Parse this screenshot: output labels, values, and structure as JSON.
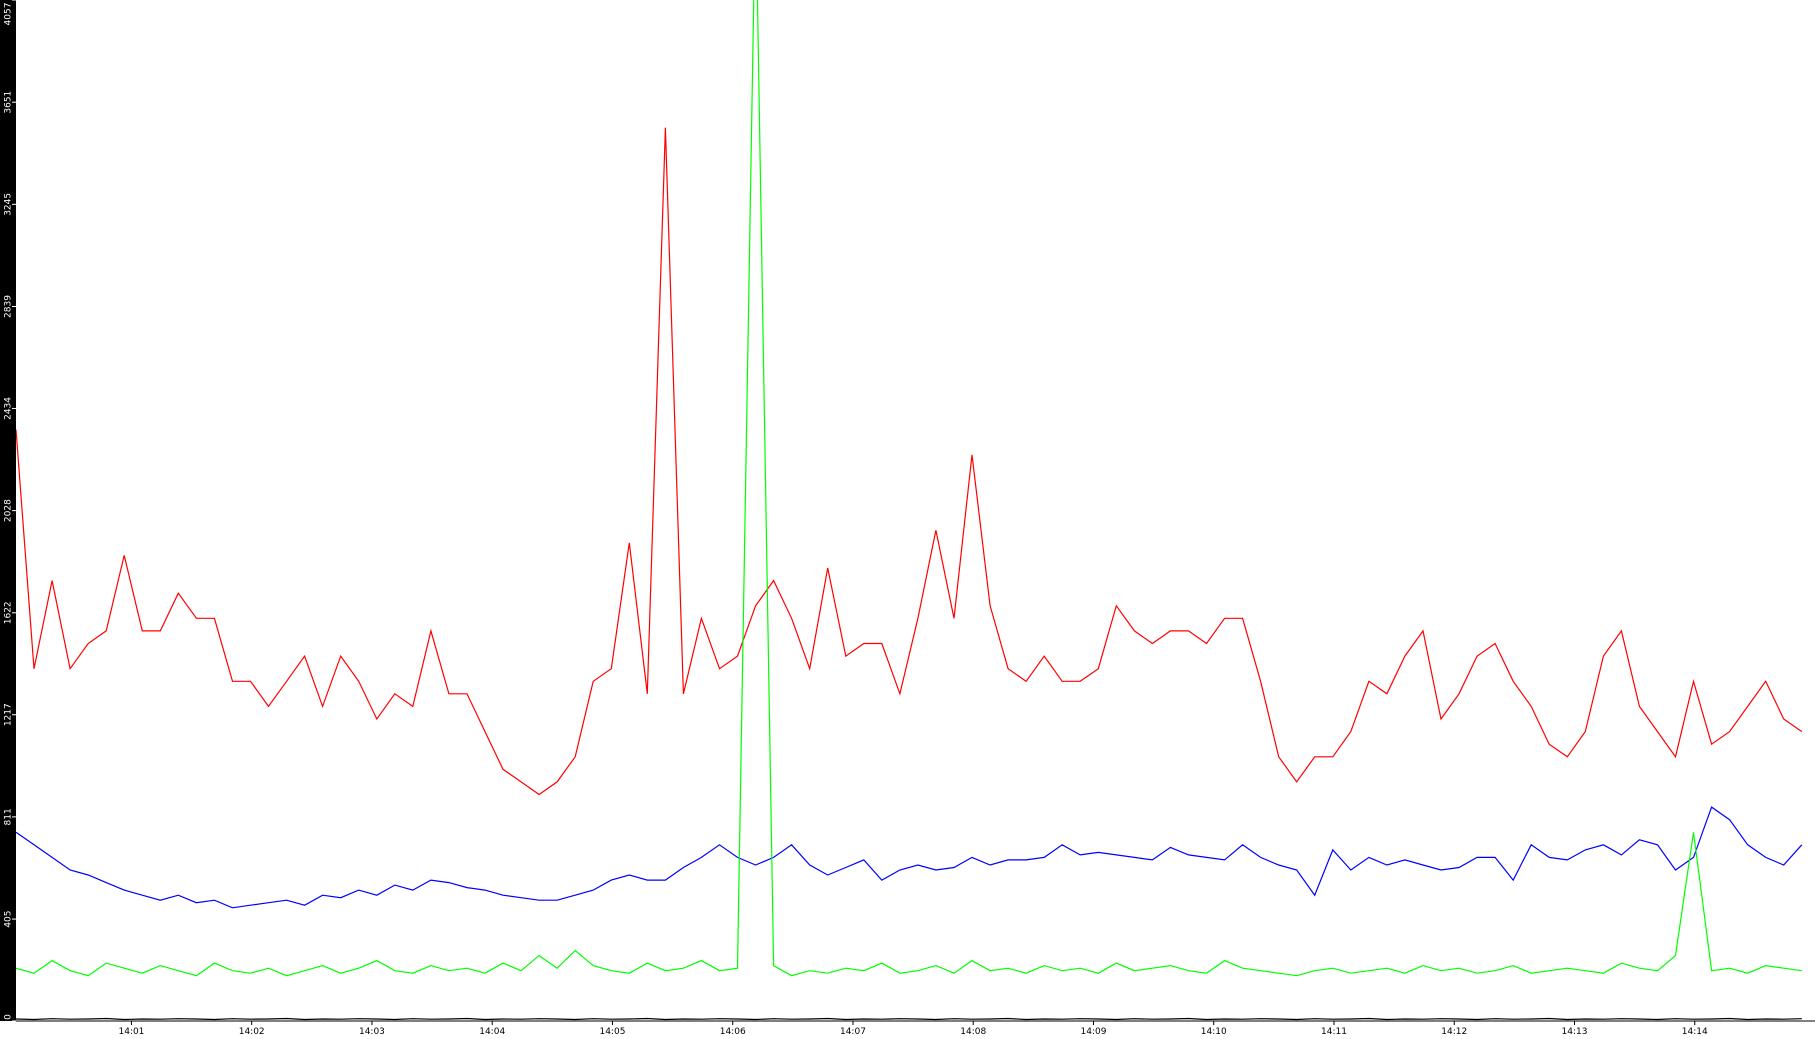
{
  "chart_data": {
    "type": "line",
    "xlim": [
      0.04,
      15.0
    ],
    "ylim": [
      0,
      4057
    ],
    "yticks": [
      0,
      405,
      811,
      1217,
      1622,
      2028,
      2434,
      2839,
      3245,
      3651,
      4057
    ],
    "xticks": [
      {
        "value": 1,
        "label": "14:01"
      },
      {
        "value": 2,
        "label": "14:02"
      },
      {
        "value": 3,
        "label": "14:03"
      },
      {
        "value": 4,
        "label": "14:04"
      },
      {
        "value": 5,
        "label": "14:05"
      },
      {
        "value": 6,
        "label": "14:06"
      },
      {
        "value": 7,
        "label": "14:07"
      },
      {
        "value": 8,
        "label": "14:08"
      },
      {
        "value": 9,
        "label": "14:09"
      },
      {
        "value": 10,
        "label": "14:10"
      },
      {
        "value": 11,
        "label": "14:11"
      },
      {
        "value": 12,
        "label": "14:12"
      },
      {
        "value": 13,
        "label": "14:13"
      },
      {
        "value": 14,
        "label": "14:14"
      }
    ],
    "x": [
      0.04,
      0.19,
      0.34,
      0.49,
      0.64,
      0.79,
      0.94,
      1.09,
      1.24,
      1.39,
      1.54,
      1.69,
      1.84,
      1.99,
      2.14,
      2.29,
      2.44,
      2.59,
      2.74,
      2.89,
      3.04,
      3.19,
      3.34,
      3.49,
      3.64,
      3.79,
      3.94,
      4.09,
      4.24,
      4.39,
      4.54,
      4.69,
      4.84,
      4.99,
      5.14,
      5.29,
      5.44,
      5.59,
      5.74,
      5.89,
      6.04,
      6.19,
      6.34,
      6.49,
      6.64,
      6.79,
      6.94,
      7.09,
      7.24,
      7.39,
      7.54,
      7.69,
      7.84,
      7.99,
      8.14,
      8.29,
      8.44,
      8.59,
      8.74,
      8.89,
      9.04,
      9.19,
      9.34,
      9.49,
      9.64,
      9.79,
      9.94,
      10.09,
      10.24,
      10.39,
      10.54,
      10.69,
      10.84,
      10.99,
      11.14,
      11.29,
      11.44,
      11.59,
      11.74,
      11.89,
      12.04,
      12.19,
      12.34,
      12.49,
      12.64,
      12.79,
      12.94,
      13.09,
      13.24,
      13.39,
      13.54,
      13.69,
      13.84,
      13.99,
      14.14,
      14.29,
      14.44,
      14.59,
      14.74,
      14.89
    ],
    "series": [
      {
        "color": "#ff0000",
        "values": [
          2350,
          1400,
          1750,
          1400,
          1500,
          1550,
          1850,
          1550,
          1550,
          1700,
          1600,
          1600,
          1350,
          1350,
          1250,
          1350,
          1450,
          1250,
          1450,
          1350,
          1200,
          1300,
          1250,
          1550,
          1300,
          1300,
          1150,
          1000,
          950,
          900,
          950,
          1050,
          1350,
          1400,
          1900,
          1300,
          3550,
          1300,
          1600,
          1400,
          1450,
          1650,
          1750,
          1600,
          1400,
          1800,
          1450,
          1500,
          1500,
          1300,
          1600,
          1950,
          1600,
          2250,
          1650,
          1400,
          1350,
          1450,
          1350,
          1350,
          1400,
          1650,
          1550,
          1500,
          1550,
          1550,
          1500,
          1600,
          1600,
          1350,
          1050,
          950,
          1050,
          1050,
          1150,
          1350,
          1300,
          1450,
          1550,
          1200,
          1300,
          1450,
          1500,
          1350,
          1250,
          1100,
          1050,
          1150,
          1450,
          1550,
          1250,
          1150,
          1050,
          1350,
          1100,
          1150,
          1250,
          1350,
          1200,
          1150
        ]
      },
      {
        "color": "#0000ff",
        "values": [
          750,
          700,
          650,
          600,
          580,
          550,
          520,
          500,
          480,
          500,
          470,
          480,
          450,
          460,
          470,
          480,
          460,
          500,
          490,
          520,
          500,
          540,
          520,
          560,
          550,
          530,
          520,
          500,
          490,
          480,
          480,
          500,
          520,
          560,
          580,
          560,
          560,
          610,
          650,
          700,
          650,
          620,
          650,
          700,
          620,
          580,
          610,
          640,
          560,
          600,
          620,
          600,
          610,
          650,
          620,
          640,
          640,
          650,
          700,
          660,
          670,
          660,
          650,
          640,
          690,
          660,
          650,
          640,
          700,
          650,
          620,
          600,
          500,
          680,
          600,
          650,
          620,
          640,
          620,
          600,
          610,
          650,
          650,
          560,
          700,
          650,
          640,
          680,
          700,
          660,
          720,
          700,
          600,
          650,
          850,
          800,
          700,
          650,
          620,
          700
        ]
      },
      {
        "color": "#00ff00",
        "values": [
          210,
          190,
          240,
          200,
          180,
          230,
          210,
          190,
          220,
          200,
          180,
          230,
          200,
          190,
          210,
          180,
          200,
          220,
          190,
          210,
          240,
          200,
          190,
          220,
          200,
          210,
          190,
          230,
          200,
          260,
          210,
          280,
          220,
          200,
          190,
          230,
          200,
          210,
          240,
          200,
          210,
          4500,
          220,
          180,
          200,
          190,
          210,
          200,
          230,
          190,
          200,
          220,
          190,
          240,
          200,
          210,
          190,
          220,
          200,
          210,
          190,
          230,
          200,
          210,
          220,
          200,
          190,
          240,
          210,
          200,
          190,
          180,
          200,
          210,
          190,
          200,
          210,
          190,
          220,
          200,
          210,
          190,
          200,
          220,
          190,
          200,
          210,
          200,
          190,
          230,
          210,
          200,
          260,
          750,
          200,
          210,
          190,
          220,
          210,
          200
        ]
      },
      {
        "color": "#000000",
        "values": [
          8,
          6,
          9,
          7,
          8,
          10,
          6,
          8,
          7,
          9,
          8,
          6,
          9,
          7,
          8,
          10,
          6,
          8,
          7,
          9,
          8,
          6,
          9,
          7,
          8,
          10,
          6,
          8,
          7,
          9,
          8,
          6,
          9,
          7,
          8,
          10,
          6,
          8,
          7,
          9,
          8,
          6,
          9,
          7,
          8,
          10,
          6,
          8,
          7,
          9,
          8,
          6,
          9,
          7,
          8,
          10,
          6,
          8,
          7,
          9,
          8,
          6,
          9,
          7,
          8,
          10,
          6,
          8,
          7,
          9,
          8,
          6,
          9,
          7,
          8,
          10,
          6,
          8,
          7,
          9,
          8,
          6,
          9,
          7,
          8,
          10,
          6,
          8,
          7,
          9,
          8,
          6,
          9,
          7,
          8,
          10,
          6,
          8,
          7,
          9
        ]
      }
    ]
  }
}
